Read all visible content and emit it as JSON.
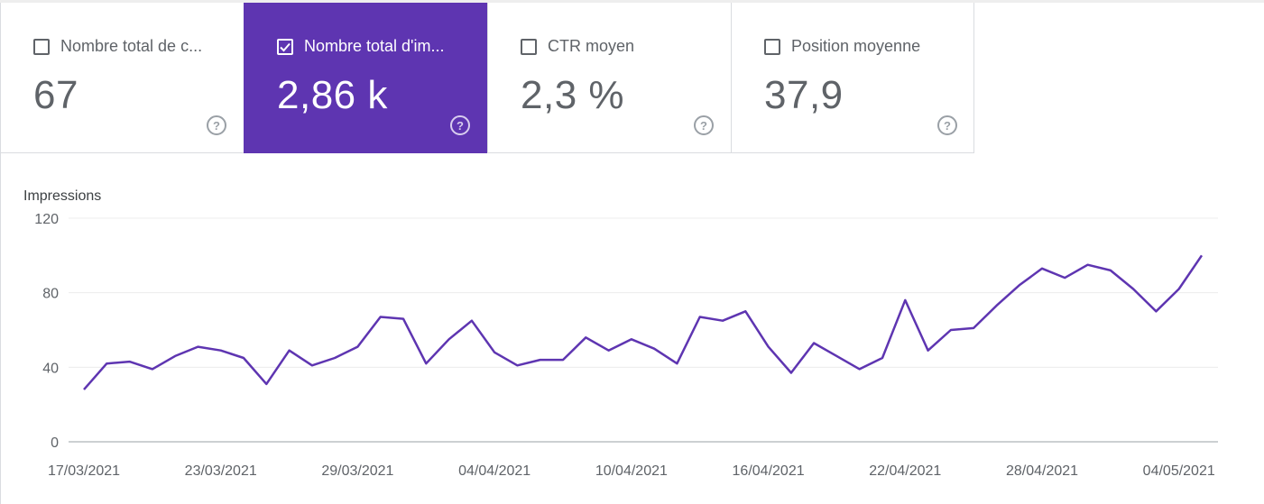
{
  "metrics": [
    {
      "label": "Nombre total de c...",
      "value": "67",
      "selected": false
    },
    {
      "label": "Nombre total d'im...",
      "value": "2,86 k",
      "selected": true
    },
    {
      "label": "CTR moyen",
      "value": "2,3 %",
      "selected": false
    },
    {
      "label": "Position moyenne",
      "value": "37,9",
      "selected": false
    }
  ],
  "help_glyph": "?",
  "colors": {
    "accent": "#5e35b1",
    "line": "#5e35b1",
    "text": "#5f6368",
    "grid": "#e8eaed",
    "axis": "#9aa0a6"
  },
  "chart_data": {
    "type": "line",
    "ylabel": "Impressions",
    "ylim": [
      0,
      120
    ],
    "yticks": [
      0,
      40,
      80,
      120
    ],
    "x_tick_labels": [
      "17/03/2021",
      "23/03/2021",
      "29/03/2021",
      "04/04/2021",
      "10/04/2021",
      "16/04/2021",
      "22/04/2021",
      "28/04/2021",
      "04/05/2021"
    ],
    "x_start": "17/03/2021",
    "x_end": "04/05/2021",
    "grid": true,
    "series": [
      {
        "color": "#5e35b1",
        "dates": [
          "17/03/2021",
          "18/03/2021",
          "19/03/2021",
          "20/03/2021",
          "21/03/2021",
          "22/03/2021",
          "23/03/2021",
          "24/03/2021",
          "25/03/2021",
          "26/03/2021",
          "27/03/2021",
          "28/03/2021",
          "29/03/2021",
          "30/03/2021",
          "31/03/2021",
          "01/04/2021",
          "02/04/2021",
          "03/04/2021",
          "04/04/2021",
          "05/04/2021",
          "06/04/2021",
          "07/04/2021",
          "08/04/2021",
          "09/04/2021",
          "10/04/2021",
          "11/04/2021",
          "12/04/2021",
          "13/04/2021",
          "14/04/2021",
          "15/04/2021",
          "16/04/2021",
          "17/04/2021",
          "18/04/2021",
          "19/04/2021",
          "20/04/2021",
          "21/04/2021",
          "22/04/2021",
          "23/04/2021",
          "24/04/2021",
          "25/04/2021",
          "26/04/2021",
          "27/04/2021",
          "28/04/2021",
          "29/04/2021",
          "30/04/2021",
          "01/05/2021",
          "02/05/2021",
          "03/05/2021",
          "04/05/2021",
          "05/05/2021"
        ],
        "values": [
          28,
          42,
          43,
          39,
          46,
          51,
          49,
          45,
          31,
          49,
          41,
          45,
          51,
          67,
          66,
          42,
          55,
          65,
          48,
          41,
          44,
          44,
          56,
          49,
          55,
          50,
          42,
          67,
          65,
          70,
          51,
          37,
          53,
          46,
          39,
          45,
          76,
          49,
          60,
          61,
          73,
          84,
          93,
          88,
          95,
          92,
          82,
          70,
          82,
          100
        ]
      }
    ]
  }
}
